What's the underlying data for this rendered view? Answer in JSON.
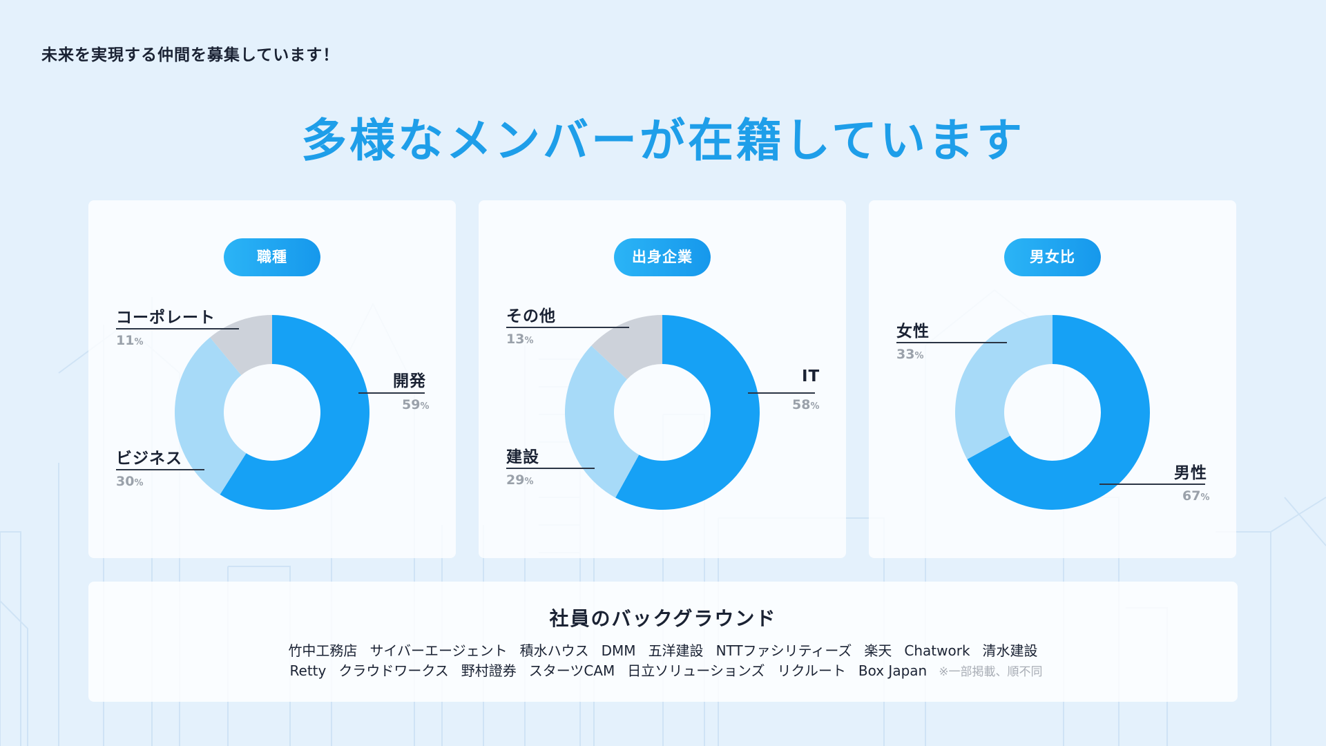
{
  "tagline": "未来を実現する仲間を募集しています！",
  "title": "多様なメンバーが在籍しています",
  "colors": {
    "primary": "#16a1f5",
    "light": "#a7daf8",
    "gray": "#cdd2da",
    "title": "#1e9ee9"
  },
  "chart_data": [
    {
      "type": "pie",
      "title": "職種",
      "slices": [
        {
          "label": "開発",
          "value": 59,
          "pct": "59",
          "color": "#16a1f5"
        },
        {
          "label": "ビジネス",
          "value": 30,
          "pct": "30",
          "color": "#a7daf8"
        },
        {
          "label": "コーポレート",
          "value": 11,
          "pct": "11",
          "color": "#cdd2da"
        }
      ]
    },
    {
      "type": "pie",
      "title": "出身企業",
      "slices": [
        {
          "label": "IT",
          "value": 58,
          "pct": "58",
          "color": "#16a1f5"
        },
        {
          "label": "建設",
          "value": 29,
          "pct": "29",
          "color": "#a7daf8"
        },
        {
          "label": "その他",
          "value": 13,
          "pct": "13",
          "color": "#cdd2da"
        }
      ]
    },
    {
      "type": "pie",
      "title": "男女比",
      "slices": [
        {
          "label": "男性",
          "value": 67,
          "pct": "67",
          "color": "#16a1f5"
        },
        {
          "label": "女性",
          "value": 33,
          "pct": "33",
          "color": "#a7daf8"
        }
      ]
    }
  ],
  "pct_unit": "%",
  "background": {
    "title": "社員のバックグラウンド",
    "row1": [
      "竹中工務店",
      "サイバーエージェント",
      "積水ハウス",
      "DMM",
      "五洋建設",
      "NTTファシリティーズ",
      "楽天",
      "Chatwork",
      "清水建設"
    ],
    "row2": [
      "Retty",
      "クラウドワークス",
      "野村證券",
      "スターツCAM",
      "日立ソリューションズ",
      "リクルート",
      "Box Japan"
    ],
    "note": "※一部掲載、順不同"
  }
}
